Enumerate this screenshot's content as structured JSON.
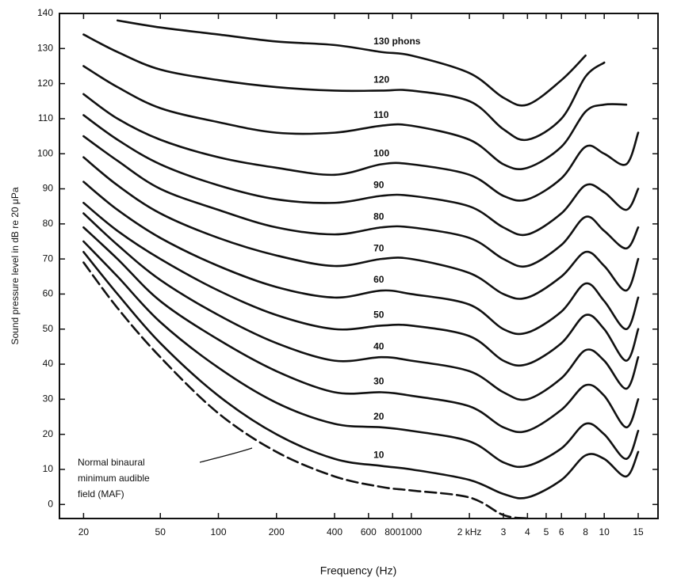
{
  "chart_data": {
    "type": "line",
    "x_label": "Frequency (Hz)",
    "y_label": "Sound pressure level in dB re 20 μPa",
    "xscale": "log",
    "xlim": [
      15,
      19000
    ],
    "ylim": [
      -4,
      140
    ],
    "xticks": [
      20,
      50,
      100,
      200,
      400,
      600,
      800,
      1000,
      {
        "value": 2000,
        "label": "2 kHz"
      },
      {
        "value": 3000,
        "label": "3"
      },
      {
        "value": 4000,
        "label": "4"
      },
      {
        "value": 5000,
        "label": "5"
      },
      {
        "value": 6000,
        "label": "6"
      },
      {
        "value": 8000,
        "label": "8"
      },
      {
        "value": 10000,
        "label": "10"
      },
      {
        "value": 15000,
        "label": "15"
      }
    ],
    "yticks": [
      0,
      10,
      20,
      30,
      40,
      50,
      60,
      70,
      80,
      90,
      100,
      110,
      120,
      130,
      140
    ],
    "x": [
      20,
      30,
      50,
      100,
      200,
      400,
      700,
      1000,
      2000,
      3000,
      4000,
      6000,
      8000,
      10000,
      13000,
      15000
    ],
    "series": [
      {
        "name": "130 phons",
        "color": "#111",
        "values": [
          null,
          138,
          136,
          134,
          132,
          131,
          129,
          128,
          123,
          116,
          114,
          121,
          128,
          null,
          null,
          null
        ]
      },
      {
        "name": "120",
        "color": "#111",
        "values": [
          134,
          129,
          124,
          121,
          119,
          118,
          118,
          118,
          115,
          107,
          104,
          110,
          122,
          126,
          null,
          null
        ]
      },
      {
        "name": "110",
        "color": "#111",
        "values": [
          125,
          119,
          113,
          109,
          106,
          106,
          108,
          108,
          104,
          97,
          96,
          102,
          112,
          114,
          114,
          null
        ]
      },
      {
        "name": "100",
        "color": "#111",
        "values": [
          117,
          110,
          104,
          99,
          96,
          94,
          97,
          97,
          94,
          88,
          87,
          93,
          102,
          100,
          97,
          106
        ]
      },
      {
        "name": "90",
        "color": "#111",
        "values": [
          111,
          104,
          97,
          91,
          87,
          86,
          88,
          88,
          85,
          79,
          77,
          83,
          91,
          89,
          84,
          90
        ]
      },
      {
        "name": "80",
        "color": "#111",
        "values": [
          105,
          98,
          90,
          84,
          79,
          77,
          79,
          79,
          76,
          70,
          68,
          74,
          82,
          78,
          73,
          79
        ]
      },
      {
        "name": "70",
        "color": "#111",
        "values": [
          99,
          91,
          83,
          76,
          71,
          68,
          70,
          70,
          66,
          60,
          59,
          65,
          72,
          68,
          61,
          70
        ]
      },
      {
        "name": "60",
        "color": "#111",
        "values": [
          92,
          84,
          76,
          68,
          62,
          59,
          61,
          60,
          57,
          50,
          49,
          55,
          63,
          58,
          50,
          59
        ]
      },
      {
        "name": "50",
        "color": "#111",
        "values": [
          86,
          78,
          70,
          61,
          54,
          50,
          51,
          51,
          48,
          41,
          40,
          46,
          54,
          50,
          41,
          50
        ]
      },
      {
        "name": "40",
        "color": "#111",
        "values": [
          83,
          74,
          64,
          54,
          46,
          41,
          42,
          41,
          38,
          32,
          30,
          36,
          44,
          41,
          33,
          42
        ]
      },
      {
        "name": "30",
        "color": "#111",
        "values": [
          79,
          70,
          58,
          47,
          38,
          32,
          32,
          31,
          28,
          22,
          21,
          27,
          34,
          31,
          22,
          30
        ]
      },
      {
        "name": "20",
        "color": "#111",
        "values": [
          75,
          65,
          52,
          39,
          29,
          23,
          22,
          21,
          18,
          12,
          11,
          16,
          23,
          20,
          13,
          21
        ]
      },
      {
        "name": "10",
        "color": "#111",
        "values": [
          72,
          60,
          46,
          31,
          20,
          13,
          11,
          10,
          7,
          3,
          2,
          7,
          14,
          13,
          8,
          15
        ]
      },
      {
        "color": "#111",
        "dashed": true,
        "values": [
          69,
          56,
          42,
          26,
          15,
          8,
          5,
          4,
          2,
          -3,
          -4,
          null,
          null,
          null,
          null,
          null
        ]
      }
    ],
    "annotation": [
      "Normal binaural",
      "minimum audible",
      "field (MAF)"
    ]
  }
}
